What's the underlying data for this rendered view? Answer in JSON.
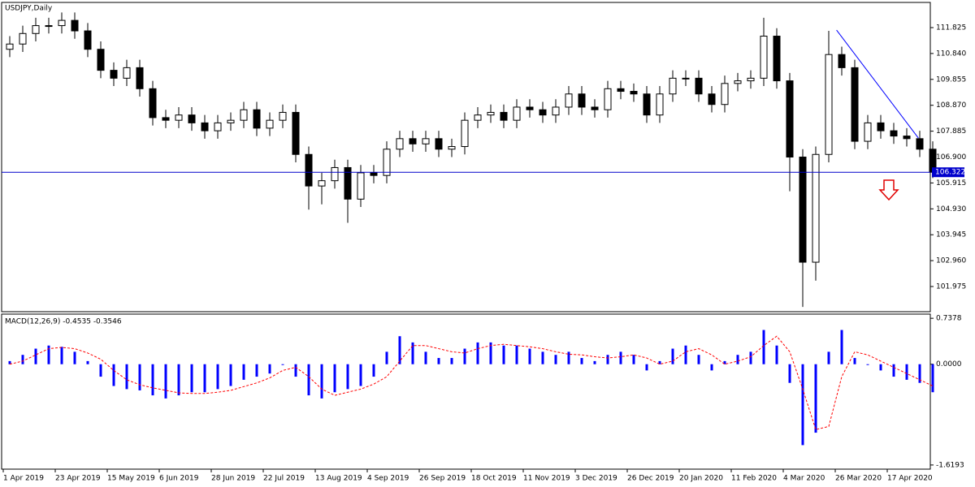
{
  "chart_data": [
    {
      "type": "candlestick",
      "title": "USDJPY,Daily",
      "categories": [
        "1 Apr 2019",
        null,
        null,
        null,
        "23 Apr 2019",
        null,
        null,
        null,
        "15 May 2019",
        null,
        null,
        null,
        "6 Jun 2019",
        null,
        null,
        null,
        "28 Jun 2019",
        null,
        null,
        null,
        "22 Jul 2019",
        null,
        null,
        null,
        "13 Aug 2019",
        null,
        null,
        null,
        "4 Sep 2019",
        null,
        null,
        null,
        "26 Sep 2019",
        null,
        null,
        null,
        "18 Oct 2019",
        null,
        null,
        null,
        "11 Nov 2019",
        null,
        null,
        null,
        "3 Dec 2019",
        null,
        null,
        null,
        "26 Dec 2019",
        null,
        null,
        null,
        "20 Jan 2020",
        null,
        null,
        null,
        "11 Feb 2020",
        null,
        null,
        null,
        "4 Mar 2020",
        null,
        null,
        null,
        "26 Mar 2020",
        null,
        null,
        null,
        "17 Apr 2020",
        null,
        null,
        null
      ],
      "open": [
        111.0,
        111.2,
        111.6,
        111.9,
        111.9,
        112.1,
        111.7,
        111.0,
        110.2,
        109.9,
        110.3,
        109.5,
        108.4,
        108.3,
        108.5,
        108.2,
        107.9,
        108.2,
        108.3,
        108.7,
        108.0,
        108.3,
        108.6,
        107.0,
        105.8,
        106.0,
        106.5,
        105.3,
        106.3,
        106.2,
        107.2,
        107.6,
        107.4,
        107.6,
        107.2,
        107.3,
        108.3,
        108.5,
        108.6,
        108.3,
        108.8,
        108.7,
        108.5,
        108.8,
        109.3,
        108.8,
        108.7,
        109.5,
        109.4,
        109.3,
        108.5,
        109.3,
        109.9,
        109.9,
        109.3,
        108.9,
        109.7,
        109.8,
        109.9,
        111.5,
        109.8,
        106.9,
        102.9,
        107.0,
        110.8,
        110.3,
        107.5,
        108.2,
        107.9,
        107.7,
        107.6,
        107.2
      ],
      "high": [
        111.5,
        111.9,
        112.2,
        112.2,
        112.4,
        112.4,
        112.0,
        111.3,
        110.5,
        110.6,
        110.6,
        109.8,
        108.7,
        108.8,
        108.8,
        108.5,
        108.5,
        108.6,
        109.0,
        109.0,
        108.6,
        108.9,
        108.9,
        107.3,
        106.3,
        106.8,
        106.8,
        106.6,
        106.6,
        107.5,
        107.9,
        107.9,
        107.9,
        107.9,
        107.6,
        108.6,
        108.8,
        108.9,
        108.9,
        109.1,
        109.1,
        109.0,
        109.1,
        109.6,
        109.6,
        109.1,
        109.8,
        109.8,
        109.7,
        109.6,
        109.6,
        110.2,
        110.2,
        110.2,
        109.6,
        110.0,
        110.1,
        110.2,
        112.2,
        111.8,
        110.1,
        107.2,
        107.3,
        111.7,
        111.1,
        110.6,
        108.5,
        108.5,
        108.2,
        108.0,
        107.9,
        107.5
      ],
      "low": [
        110.7,
        110.9,
        111.3,
        111.6,
        111.6,
        111.4,
        110.7,
        109.9,
        109.6,
        109.6,
        109.2,
        108.1,
        108.0,
        108.0,
        107.9,
        107.6,
        107.6,
        107.9,
        108.0,
        107.7,
        107.7,
        108.0,
        106.7,
        104.9,
        105.1,
        105.7,
        104.4,
        105.0,
        105.9,
        105.9,
        106.9,
        107.1,
        107.1,
        106.9,
        106.9,
        107.0,
        108.0,
        108.2,
        108.0,
        108.0,
        108.4,
        108.2,
        108.2,
        108.5,
        108.5,
        108.4,
        108.4,
        109.1,
        109.0,
        108.2,
        108.2,
        109.0,
        109.6,
        109.0,
        108.6,
        108.6,
        109.4,
        109.5,
        109.6,
        109.5,
        105.6,
        101.2,
        102.2,
        106.7,
        110.0,
        107.2,
        107.2,
        107.6,
        107.4,
        107.3,
        106.9,
        106.1
      ],
      "close": [
        111.2,
        111.6,
        111.9,
        111.9,
        112.1,
        111.7,
        111.0,
        110.2,
        109.9,
        110.3,
        109.5,
        108.4,
        108.3,
        108.5,
        108.2,
        107.9,
        108.2,
        108.3,
        108.7,
        108.0,
        108.3,
        108.6,
        107.0,
        105.8,
        106.0,
        106.5,
        105.3,
        106.3,
        106.2,
        107.2,
        107.6,
        107.4,
        107.6,
        107.2,
        107.3,
        108.3,
        108.5,
        108.6,
        108.3,
        108.8,
        108.7,
        108.5,
        108.8,
        109.3,
        108.8,
        108.7,
        109.5,
        109.4,
        109.3,
        108.5,
        109.3,
        109.9,
        109.9,
        109.3,
        108.9,
        109.7,
        109.8,
        109.9,
        111.5,
        109.8,
        106.9,
        102.9,
        107.0,
        110.8,
        110.3,
        107.5,
        108.2,
        107.9,
        107.7,
        107.6,
        107.2,
        106.322
      ],
      "ylim": [
        101.018,
        112.782
      ],
      "yticks": [
        111.825,
        {
          "value": 110.84,
          "label": "110.840"
        },
        109.855,
        {
          "value": 108.87,
          "label": "108.870"
        },
        107.885,
        {
          "value": 106.9,
          "label": "106.900"
        },
        105.915,
        {
          "value": 104.93,
          "label": "104.930"
        },
        103.945,
        {
          "value": 102.96,
          "label": "102.960"
        },
        101.975
      ],
      "current_price": 106.322,
      "current_color": "#0000cc",
      "trendline": {
        "x": [
          63.6,
          69.9
        ],
        "y": [
          111.73,
          107.62
        ],
        "color": "#0000ff"
      }
    },
    {
      "type": "macd",
      "title": "MACD(12,26,9) -0.4535 -0.3546",
      "series": [
        {
          "color": "#0000ff",
          "values": [
            0.05,
            0.15,
            0.25,
            0.3,
            0.28,
            0.2,
            0.05,
            -0.2,
            -0.35,
            -0.4,
            -0.42,
            -0.5,
            -0.55,
            -0.5,
            -0.45,
            -0.45,
            -0.4,
            -0.35,
            -0.25,
            -0.2,
            -0.15,
            0.0,
            -0.2,
            -0.5,
            -0.55,
            -0.45,
            -0.4,
            -0.35,
            -0.2,
            0.2,
            0.45,
            0.35,
            0.2,
            0.1,
            0.1,
            0.25,
            0.35,
            0.35,
            0.3,
            0.3,
            0.25,
            0.2,
            0.15,
            0.2,
            0.1,
            0.05,
            0.15,
            0.2,
            0.15,
            -0.1,
            0.05,
            0.25,
            0.3,
            0.15,
            -0.1,
            0.05,
            0.15,
            0.2,
            0.55,
            0.3,
            -0.3,
            -1.3,
            -1.1,
            0.2,
            0.55,
            0.1,
            0.0,
            -0.1,
            -0.2,
            -0.25,
            -0.3,
            -0.45
          ]
        },
        {
          "color": "#ff0000",
          "values": [
            0.0,
            0.05,
            0.15,
            0.25,
            0.27,
            0.25,
            0.18,
            0.08,
            -0.1,
            -0.25,
            -0.33,
            -0.38,
            -0.42,
            -0.46,
            -0.47,
            -0.47,
            -0.45,
            -0.42,
            -0.36,
            -0.3,
            -0.22,
            -0.1,
            -0.05,
            -0.2,
            -0.4,
            -0.5,
            -0.45,
            -0.4,
            -0.32,
            -0.2,
            0.05,
            0.3,
            0.3,
            0.25,
            0.2,
            0.18,
            0.25,
            0.3,
            0.32,
            0.3,
            0.28,
            0.25,
            0.2,
            0.16,
            0.15,
            0.12,
            0.1,
            0.12,
            0.15,
            0.1,
            0.0,
            0.05,
            0.2,
            0.25,
            0.15,
            0.0,
            0.05,
            0.12,
            0.3,
            0.45,
            0.2,
            -0.4,
            -1.05,
            -1.0,
            -0.2,
            0.2,
            0.15,
            0.05,
            -0.05,
            -0.15,
            -0.25,
            -0.35
          ]
        }
      ],
      "ylim": [
        -1.686,
        0.805
      ],
      "yticks": [
        0.7378,
        {
          "value": 0,
          "label": "0.0000"
        },
        -1.6193
      ]
    }
  ]
}
